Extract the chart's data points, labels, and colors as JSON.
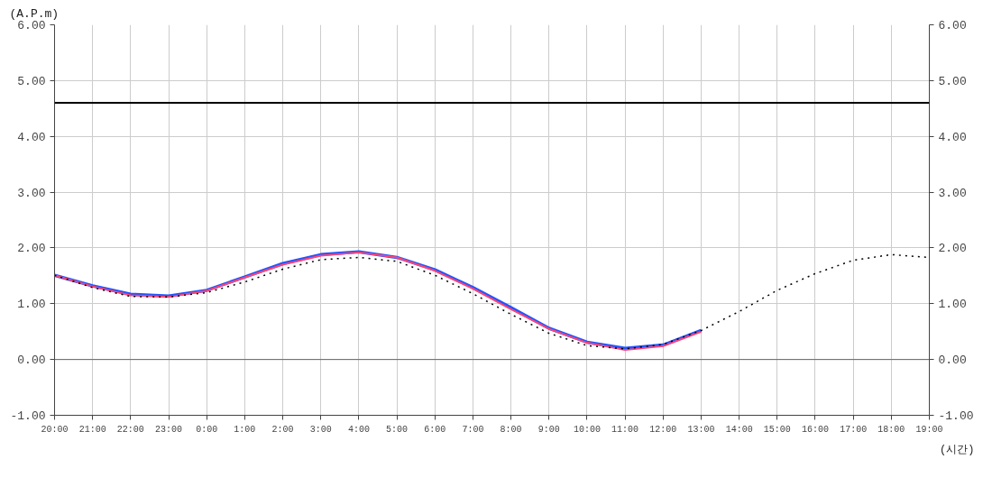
{
  "chart_data": {
    "type": "line",
    "ylabel": "(A.P.m)",
    "xlabel": "(시간)",
    "categories": [
      "20:00",
      "21:00",
      "22:00",
      "23:00",
      "0:00",
      "1:00",
      "2:00",
      "3:00",
      "4:00",
      "5:00",
      "6:00",
      "7:00",
      "8:00",
      "9:00",
      "10:00",
      "11:00",
      "12:00",
      "13:00",
      "14:00",
      "15:00",
      "16:00",
      "17:00",
      "18:00",
      "19:00"
    ],
    "series": [
      {
        "color": "#2255ff",
        "values": [
          1.51,
          1.32,
          1.17,
          1.14,
          1.24,
          1.48,
          1.72,
          1.88,
          1.93,
          1.83,
          1.61,
          1.29,
          0.93,
          0.56,
          0.31,
          0.2,
          0.26,
          0.52,
          null,
          null,
          null,
          null,
          null,
          null
        ]
      },
      {
        "color": "#ff4477",
        "values": [
          1.51,
          1.31,
          1.15,
          1.12,
          1.23,
          1.47,
          1.7,
          1.86,
          1.92,
          1.83,
          1.59,
          1.27,
          0.9,
          0.55,
          0.3,
          0.17,
          0.24,
          0.5,
          null,
          null,
          null,
          null,
          null,
          null
        ]
      },
      {
        "color": "#000000",
        "line_style": "dotted",
        "values": [
          1.51,
          1.29,
          1.13,
          1.12,
          1.2,
          1.39,
          1.62,
          1.79,
          1.83,
          1.76,
          1.51,
          1.18,
          0.81,
          0.47,
          0.25,
          0.19,
          0.27,
          0.52,
          0.86,
          1.24,
          1.54,
          1.78,
          1.88,
          1.83
        ]
      }
    ],
    "ylim": [
      -1,
      6
    ],
    "yticks": [
      {
        "value": -1,
        "label": "-1.00"
      },
      {
        "value": 0,
        "label": "0.00"
      },
      {
        "value": 1,
        "label": "1.00"
      },
      {
        "value": 2,
        "label": "2.00"
      },
      {
        "value": 3,
        "label": "3.00"
      },
      {
        "value": 4,
        "label": "4.00"
      },
      {
        "value": 5,
        "label": "5.00"
      },
      {
        "value": 6,
        "label": "6.00"
      }
    ],
    "y2lim": [
      -1,
      6
    ],
    "y2ticks": [
      {
        "value": -1,
        "label": "-1.00"
      },
      {
        "value": 0,
        "label": "0.00"
      },
      {
        "value": 1,
        "label": "1.00"
      },
      {
        "value": 2,
        "label": "2.00"
      },
      {
        "value": 3,
        "label": "3.00"
      },
      {
        "value": 4,
        "label": "4.00"
      },
      {
        "value": 5,
        "label": "5.00"
      },
      {
        "value": 6,
        "label": "6.00"
      }
    ],
    "ref_lines": [
      {
        "axis": "y",
        "value": 4.6,
        "color": "#000000"
      },
      {
        "axis": "y",
        "value": 0,
        "color": "#666666"
      }
    ],
    "grid": true,
    "marker": "none"
  }
}
